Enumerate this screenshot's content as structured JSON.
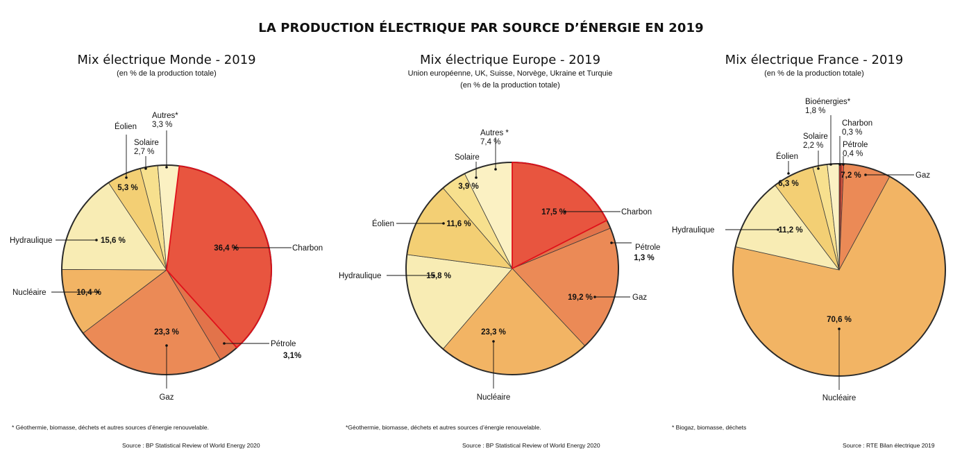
{
  "title": "LA PRODUCTION ÉLECTRIQUE PAR SOURCE D’ÉNERGIE EN 2019",
  "panels": [
    {
      "title": "Mix électrique Monde - 2019",
      "subtitles": [
        "(en % de la production totale)"
      ],
      "footnote": "* Géothermie, biomasse, déchets et autres sources d’énergie renouvelable.",
      "source": "Source : BP Statistical Review of World Energy 2020"
    },
    {
      "title": "Mix électrique Europe - 2019",
      "subtitles": [
        "Union européenne, UK, Suisse, Norvège, Ukraine et Turquie",
        "(en % de la production totale)"
      ],
      "footnote": "*Géothermie, biomasse, déchets et autres sources d’énergie renouvelable.",
      "source": "Source : BP Statistical Review of World Energy 2020"
    },
    {
      "title": "Mix électrique France - 2019",
      "subtitles": [
        "(en % de la production totale)"
      ],
      "footnote": "* Biogaz, biomasse, déchets",
      "source": "Source : RTE Bilan électrique 2019"
    }
  ],
  "colors": {
    "Charbon": "#e8553f",
    "Pétrole": "#e2734a",
    "Gaz": "#eb8a56",
    "Nucléaire": "#f2b464",
    "Hydraulique": "#f8ecb4",
    "Éolien": "#f3cf74",
    "Solaire": "#f7e08e",
    "Autres": "#fbf1c3",
    "Bioénergies": "#fbf1c3",
    "France_Charbon": "#c82b20",
    "France_Petrole": "#e5553c",
    "outline": "#2a2a2a",
    "highlight": "#e0101a"
  },
  "chart_data": [
    {
      "type": "pie",
      "title": "Mix électrique Monde - 2019",
      "slices": [
        {
          "category": "Charbon",
          "value": 36.4,
          "label": "36,4 %"
        },
        {
          "category": "Pétrole",
          "value": 3.1,
          "label": "3,1%"
        },
        {
          "category": "Gaz",
          "value": 23.3,
          "label": "23,3 %"
        },
        {
          "category": "Nucléaire",
          "value": 10.4,
          "label": "10,4 %"
        },
        {
          "category": "Hydraulique",
          "value": 15.6,
          "label": "15,6  %"
        },
        {
          "category": "Éolien",
          "value": 5.3,
          "label": "5,3 %"
        },
        {
          "category": "Solaire",
          "value": 2.7,
          "label": "2,7 %"
        },
        {
          "category": "Autres*",
          "value": 3.3,
          "label": "3,3 %"
        }
      ]
    },
    {
      "type": "pie",
      "title": "Mix électrique Europe - 2019",
      "slices": [
        {
          "category": "Charbon",
          "value": 17.5,
          "label": "17,5 %"
        },
        {
          "category": "Pétrole",
          "value": 1.3,
          "label": "1,3 %"
        },
        {
          "category": "Gaz",
          "value": 19.2,
          "label": "19,2 %"
        },
        {
          "category": "Nucléaire",
          "value": 23.3,
          "label": "23,3 %"
        },
        {
          "category": "Hydraulique",
          "value": 15.8,
          "label": "15,8  %"
        },
        {
          "category": "Éolien",
          "value": 11.6,
          "label": "11,6 %"
        },
        {
          "category": "Solaire",
          "value": 3.9,
          "label": "3,9 %"
        },
        {
          "category": "Autres *",
          "value": 7.4,
          "label": "7,4 %"
        }
      ]
    },
    {
      "type": "pie",
      "title": "Mix électrique France - 2019",
      "slices": [
        {
          "category": "Charbon",
          "value": 0.3,
          "label": "0,3 %"
        },
        {
          "category": "Pétrole",
          "value": 0.4,
          "label": "0,4 %"
        },
        {
          "category": "Gaz",
          "value": 7.2,
          "label": "7,2 %"
        },
        {
          "category": "Nucléaire",
          "value": 70.6,
          "label": "70,6 %"
        },
        {
          "category": "Hydraulique",
          "value": 11.2,
          "label": "11,2 %"
        },
        {
          "category": "Éolien",
          "value": 6.3,
          "label": "6,3 %"
        },
        {
          "category": "Solaire",
          "value": 2.2,
          "label": "2,2 %"
        },
        {
          "category": "Bioénergies*",
          "value": 1.8,
          "label": "1,8 %"
        }
      ]
    }
  ]
}
